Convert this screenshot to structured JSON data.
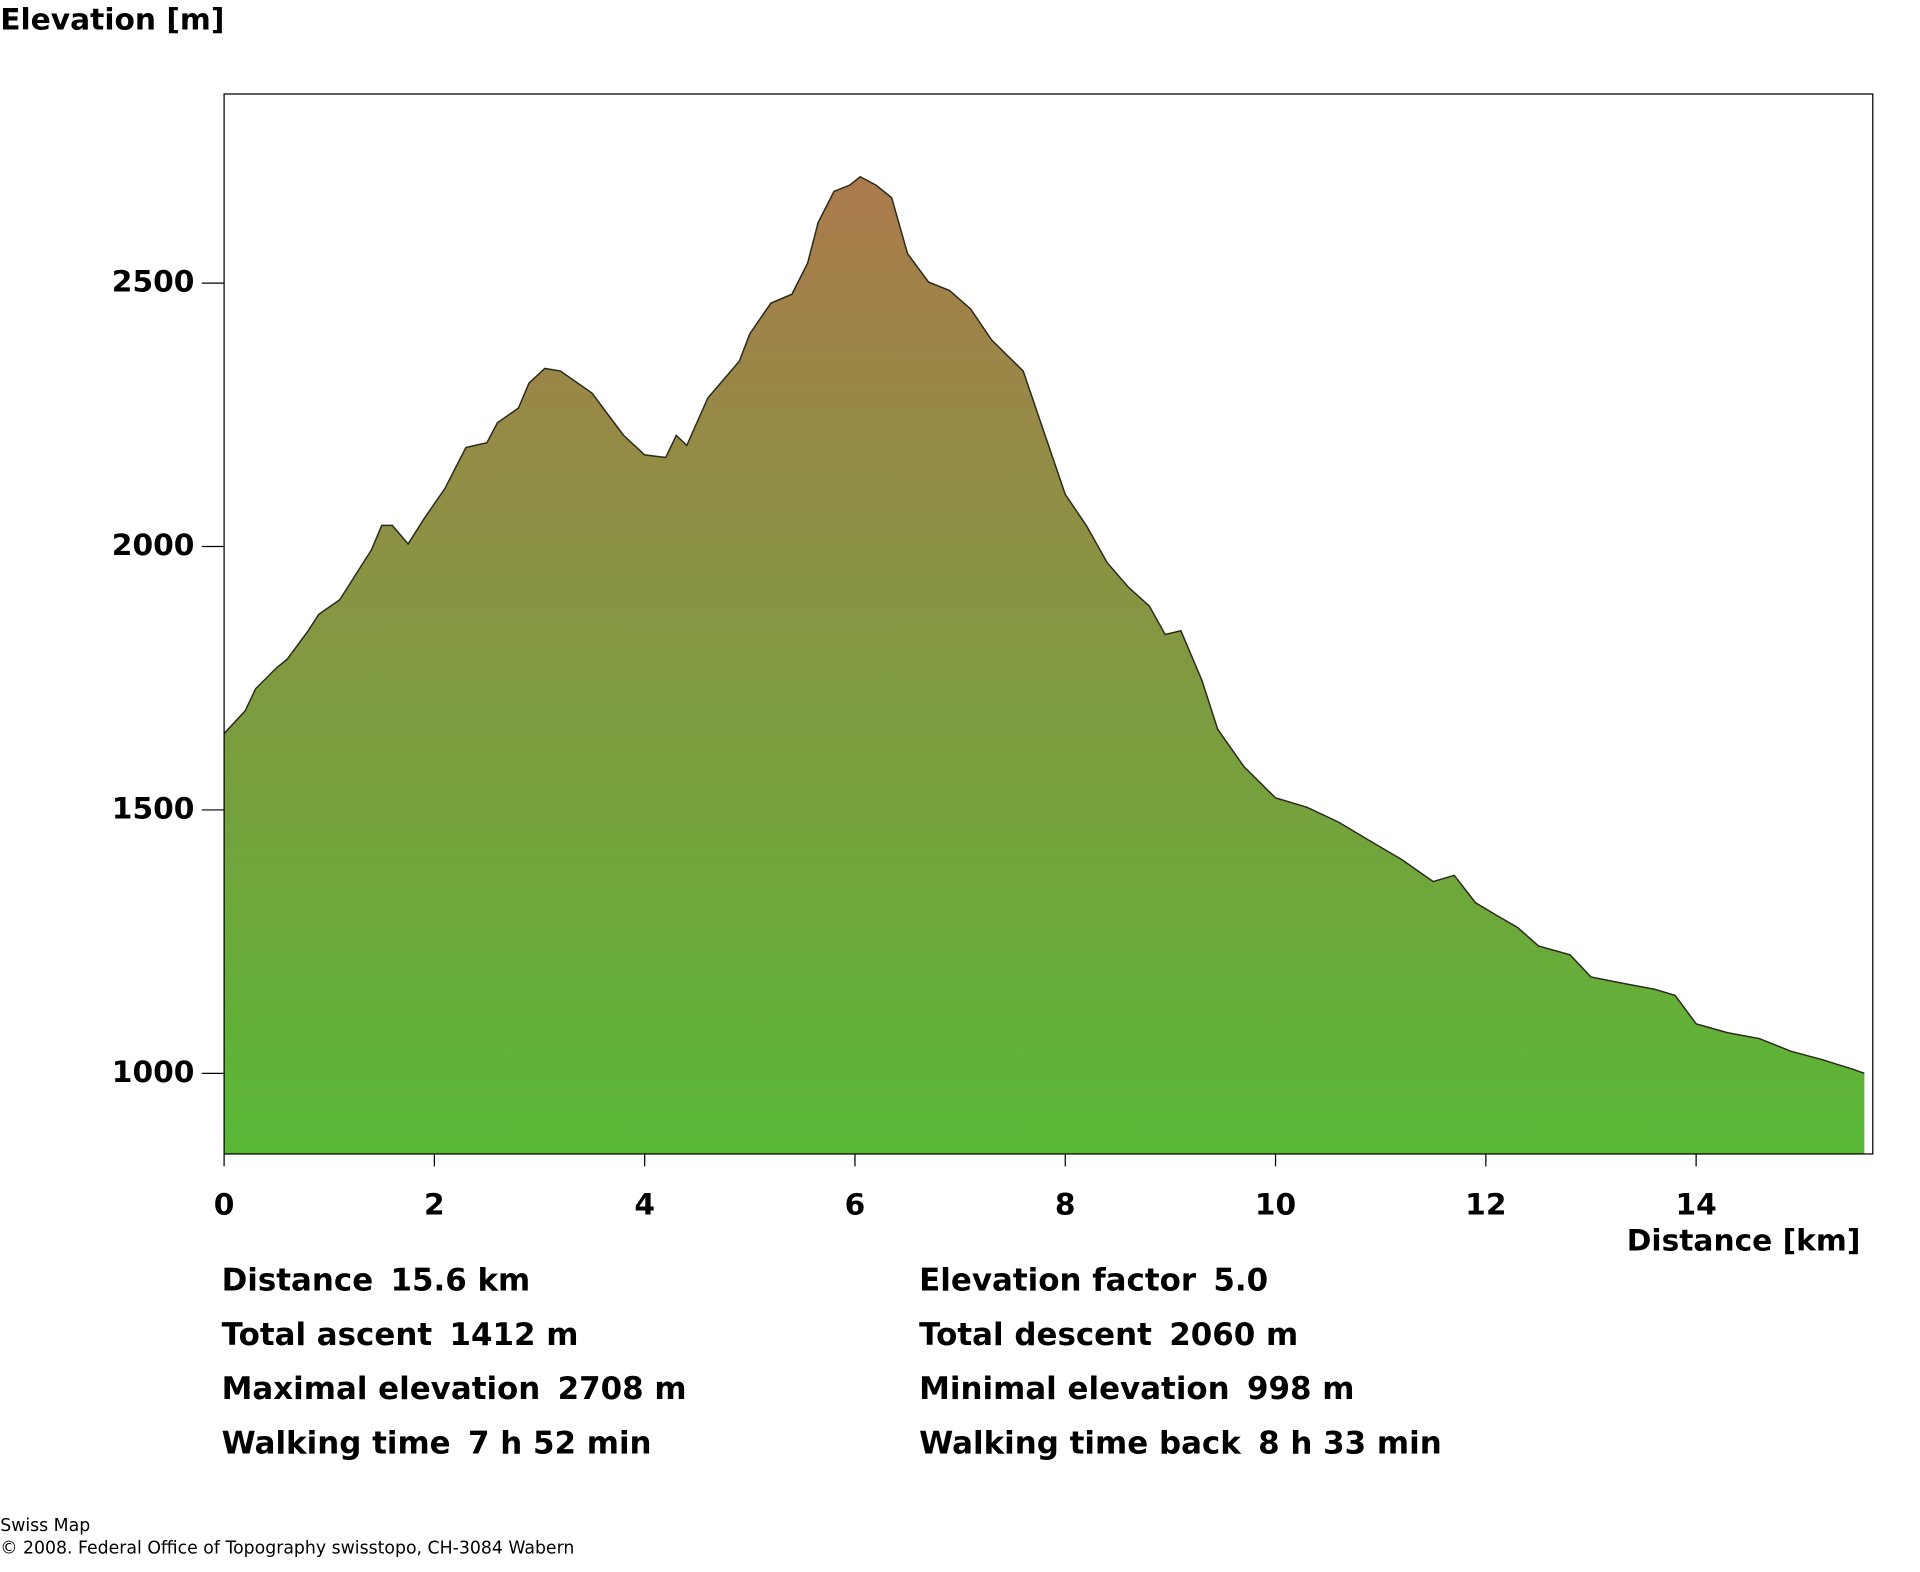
{
  "chart_data": {
    "type": "area",
    "title": "Elevation [m]",
    "x_label": "Distance [km]",
    "x": [
      0,
      0.2,
      0.3,
      0.5,
      0.6,
      0.8,
      0.9,
      1.1,
      1.3,
      1.4,
      1.5,
      1.6,
      1.75,
      1.9,
      2.1,
      2.3,
      2.5,
      2.6,
      2.8,
      2.9,
      3.05,
      3.2,
      3.5,
      3.8,
      4.0,
      4.2,
      4.3,
      4.4,
      4.6,
      4.9,
      5.0,
      5.2,
      5.4,
      5.55,
      5.65,
      5.8,
      5.95,
      6.05,
      6.2,
      6.35,
      6.5,
      6.7,
      6.9,
      7.1,
      7.3,
      7.6,
      7.8,
      8.0,
      8.2,
      8.4,
      8.6,
      8.8,
      8.95,
      9.1,
      9.3,
      9.45,
      9.7,
      10.0,
      10.3,
      10.6,
      10.9,
      11.2,
      11.5,
      11.7,
      11.9,
      12.1,
      12.3,
      12.5,
      12.8,
      13.0,
      13.3,
      13.6,
      13.8,
      14.0,
      14.3,
      14.6,
      14.9,
      15.2,
      15.5,
      15.6
    ],
    "y": [
      1645,
      1688,
      1730,
      1770,
      1786,
      1840,
      1871,
      1899,
      1962,
      1993,
      2040,
      2040,
      2005,
      2052,
      2110,
      2188,
      2197,
      2235,
      2263,
      2310,
      2338,
      2333,
      2291,
      2211,
      2174,
      2169,
      2211,
      2192,
      2282,
      2352,
      2404,
      2462,
      2479,
      2538,
      2615,
      2674,
      2686,
      2702,
      2686,
      2662,
      2556,
      2502,
      2486,
      2451,
      2392,
      2333,
      2216,
      2099,
      2040,
      1969,
      1923,
      1887,
      1833,
      1840,
      1746,
      1653,
      1582,
      1523,
      1505,
      1477,
      1441,
      1406,
      1364,
      1376,
      1324,
      1300,
      1277,
      1242,
      1225,
      1183,
      1171,
      1160,
      1148,
      1094,
      1077,
      1066,
      1042,
      1026,
      1007,
      1000
    ],
    "xlim": [
      0,
      15.68
    ],
    "ylim": [
      847,
      2859
    ],
    "xticks": [
      0,
      2,
      4,
      6,
      8,
      10,
      12,
      14
    ],
    "yticks": [
      1000,
      1500,
      2000,
      2500
    ],
    "gradient": [
      "#ab7a4c",
      "#58b835"
    ],
    "outline_color": "#2a2a1a",
    "stats": [
      {
        "label": "Distance",
        "value": "15.6 km"
      },
      {
        "label": "Elevation factor",
        "value": "5.0"
      },
      {
        "label": "Total ascent",
        "value": "1412 m"
      },
      {
        "label": "Total descent",
        "value": "2060 m"
      },
      {
        "label": "Maximal elevation",
        "value": "2708 m"
      },
      {
        "label": "Minimal elevation",
        "value": "998 m"
      },
      {
        "label": "Walking time",
        "value": "7 h 52 min"
      },
      {
        "label": "Walking time back",
        "value": "8 h 33 min"
      }
    ],
    "footer": [
      "Swiss Map",
      "© 2008. Federal Office of Topography swisstopo, CH-3084 Wabern"
    ]
  }
}
